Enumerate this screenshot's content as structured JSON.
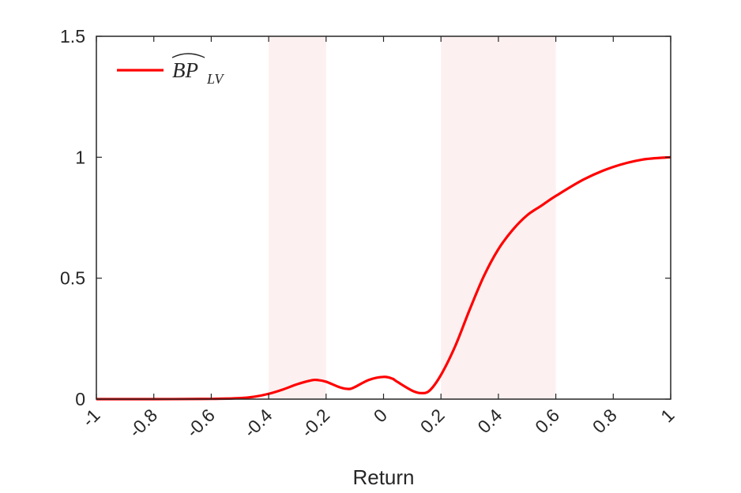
{
  "chart_data": {
    "type": "line",
    "xlabel": "Return",
    "ylabel": "",
    "xlim": [
      -1,
      1
    ],
    "ylim": [
      0,
      1.5
    ],
    "xticks": [
      -1,
      -0.8,
      -0.6,
      -0.4,
      -0.2,
      0,
      0.2,
      0.4,
      0.6,
      0.8,
      1
    ],
    "xtick_labels": [
      "-1",
      "-0.8",
      "-0.6",
      "-0.4",
      "-0.2",
      "0",
      "0.2",
      "0.4",
      "0.6",
      "0.8",
      "1"
    ],
    "yticks": [
      0,
      0.5,
      1,
      1.5
    ],
    "ytick_labels": [
      "0",
      "0.5",
      "1",
      "1.5"
    ],
    "grid": false,
    "legend_position": "top-left",
    "shaded_regions": [
      {
        "x0": -0.4,
        "x1": -0.2
      },
      {
        "x0": 0.2,
        "x1": 0.6
      }
    ],
    "series": [
      {
        "name": "BP_LV",
        "legend_main": "BP",
        "legend_sub": "LV",
        "color": "#ff0000",
        "x": [
          -1,
          -0.8,
          -0.6,
          -0.5,
          -0.45,
          -0.4,
          -0.35,
          -0.3,
          -0.25,
          -0.23,
          -0.2,
          -0.15,
          -0.12,
          -0.1,
          -0.05,
          0,
          0.03,
          0.05,
          0.1,
          0.13,
          0.16,
          0.2,
          0.25,
          0.3,
          0.35,
          0.4,
          0.45,
          0.5,
          0.55,
          0.6,
          0.7,
          0.8,
          0.9,
          1
        ],
        "y": [
          0,
          0,
          0.001,
          0.004,
          0.01,
          0.022,
          0.04,
          0.062,
          0.078,
          0.079,
          0.072,
          0.048,
          0.042,
          0.05,
          0.08,
          0.092,
          0.085,
          0.07,
          0.035,
          0.025,
          0.035,
          0.1,
          0.22,
          0.37,
          0.51,
          0.62,
          0.7,
          0.76,
          0.8,
          0.84,
          0.91,
          0.96,
          0.99,
          1.0
        ]
      }
    ],
    "shade_color": "#fdf0f0",
    "axis_color": "#262626"
  }
}
